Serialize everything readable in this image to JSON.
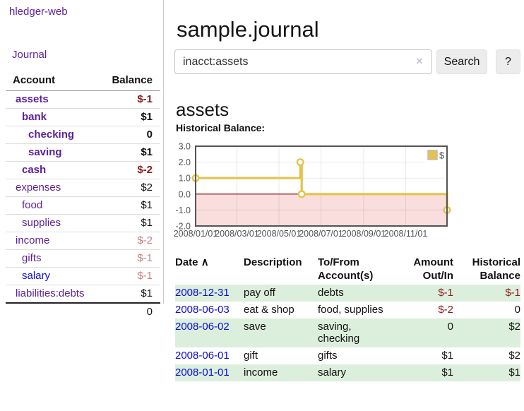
{
  "brand": "hledger-web",
  "nav": {
    "journal": "Journal"
  },
  "sidebar": {
    "header": {
      "account": "Account",
      "balance": "Balance"
    },
    "accounts": [
      {
        "name": "assets",
        "balance": "$-1",
        "indent": 0,
        "bold": true,
        "neg": "strong",
        "link": "purple"
      },
      {
        "name": "bank",
        "balance": "$1",
        "indent": 1,
        "bold": true,
        "neg": "none",
        "link": "purple"
      },
      {
        "name": "checking",
        "balance": "0",
        "indent": 2,
        "bold": true,
        "neg": "none",
        "link": "purple"
      },
      {
        "name": "saving",
        "balance": "$1",
        "indent": 2,
        "bold": true,
        "neg": "none",
        "link": "purple"
      },
      {
        "name": "cash",
        "balance": "$-2",
        "indent": 1,
        "bold": true,
        "neg": "strong",
        "link": "purple"
      },
      {
        "name": "expenses",
        "balance": "$2",
        "indent": 0,
        "bold": false,
        "neg": "none",
        "link": "purple"
      },
      {
        "name": "food",
        "balance": "$1",
        "indent": 1,
        "bold": false,
        "neg": "none",
        "link": "purple"
      },
      {
        "name": "supplies",
        "balance": "$1",
        "indent": 1,
        "bold": false,
        "neg": "none",
        "link": "purple"
      },
      {
        "name": "income",
        "balance": "$-2",
        "indent": 0,
        "bold": false,
        "neg": "faded",
        "link": "purple"
      },
      {
        "name": "gifts",
        "balance": "$-1",
        "indent": 1,
        "bold": false,
        "neg": "faded",
        "link": "purple"
      },
      {
        "name": "salary",
        "balance": "$-1",
        "indent": 1,
        "bold": false,
        "neg": "faded",
        "link": "blue"
      },
      {
        "name": "liabilities:debts",
        "balance": "$1",
        "indent": 0,
        "bold": false,
        "neg": "none",
        "link": "purple"
      }
    ],
    "total": "0"
  },
  "main": {
    "title": "sample.journal",
    "search": {
      "value": "inacct:assets",
      "clear": "×",
      "button": "Search",
      "help": "?"
    },
    "heading": "assets",
    "chart_title": "Historical Balance:"
  },
  "chart_data": {
    "type": "line",
    "step": true,
    "title": "Historical Balance:",
    "series": [
      {
        "name": "$",
        "color": "#e7c24a",
        "points": [
          [
            "2008-01-01",
            1
          ],
          [
            "2008-06-01",
            2
          ],
          [
            "2008-06-03",
            0
          ],
          [
            "2008-12-31",
            -1
          ]
        ]
      }
    ],
    "x_start": "2008-01-01",
    "x_end": "2008-12-31",
    "xticks": [
      {
        "label": "2008/01/01",
        "date": "2008-01-01"
      },
      {
        "label": "2008/03/01",
        "date": "2008-03-01"
      },
      {
        "label": "2008/05/01",
        "date": "2008-05-01"
      },
      {
        "label": "2008/07/01",
        "date": "2008-07-01"
      },
      {
        "label": "2008/09/01",
        "date": "2008-09-01"
      },
      {
        "label": "2008/11/01",
        "date": "2008-11-01"
      }
    ],
    "yticks": [
      "3.0",
      "2.0",
      "1.0",
      "0.0",
      "-1.0",
      "-2.0"
    ],
    "ylim": [
      -2,
      3
    ],
    "grid": true,
    "legend": {
      "label": "$",
      "position": "top-right"
    },
    "negative_fill": "#fadddd",
    "zero_line": "#8b0000",
    "border_color": "#545454",
    "tick_color": "#545454"
  },
  "register": {
    "headers": [
      {
        "lines": [
          "Date"
        ],
        "sort": "∧",
        "align": "left"
      },
      {
        "lines": [
          "Description"
        ],
        "align": "left"
      },
      {
        "lines": [
          "To/From",
          "Account(s)"
        ],
        "align": "left"
      },
      {
        "lines": [
          "Amount",
          "Out/In"
        ],
        "align": "right"
      },
      {
        "lines": [
          "Historical",
          "Balance"
        ],
        "align": "right"
      }
    ],
    "rows": [
      {
        "date": "2008-12-31",
        "description": "pay off",
        "accounts": "debts",
        "amount": "$-1",
        "amount_neg": true,
        "balance": "$-1",
        "balance_neg": true
      },
      {
        "date": "2008-06-03",
        "description": "eat & shop",
        "accounts": "food, supplies",
        "amount": "$-2",
        "amount_neg": true,
        "balance": "0",
        "balance_neg": false
      },
      {
        "date": "2008-06-02",
        "description": "save",
        "accounts": "saving, checking",
        "amount": "0",
        "amount_neg": false,
        "balance": "$2",
        "balance_neg": false
      },
      {
        "date": "2008-06-01",
        "description": "gift",
        "accounts": "gifts",
        "amount": "$1",
        "amount_neg": false,
        "balance": "$2",
        "balance_neg": false
      },
      {
        "date": "2008-01-01",
        "description": "income",
        "accounts": "salary",
        "amount": "$1",
        "amount_neg": false,
        "balance": "$1",
        "balance_neg": false
      }
    ]
  },
  "colors": {
    "link_purple": "#5a1f9e",
    "link_blue": "#0b0bdd",
    "neg_strong": "#8b1a1a",
    "neg_faded": "#c67f82",
    "row_green": "#dceedc",
    "chart_gold": "#e7c24a",
    "chart_pink": "#fadddd",
    "zero_red": "#8b0000"
  }
}
